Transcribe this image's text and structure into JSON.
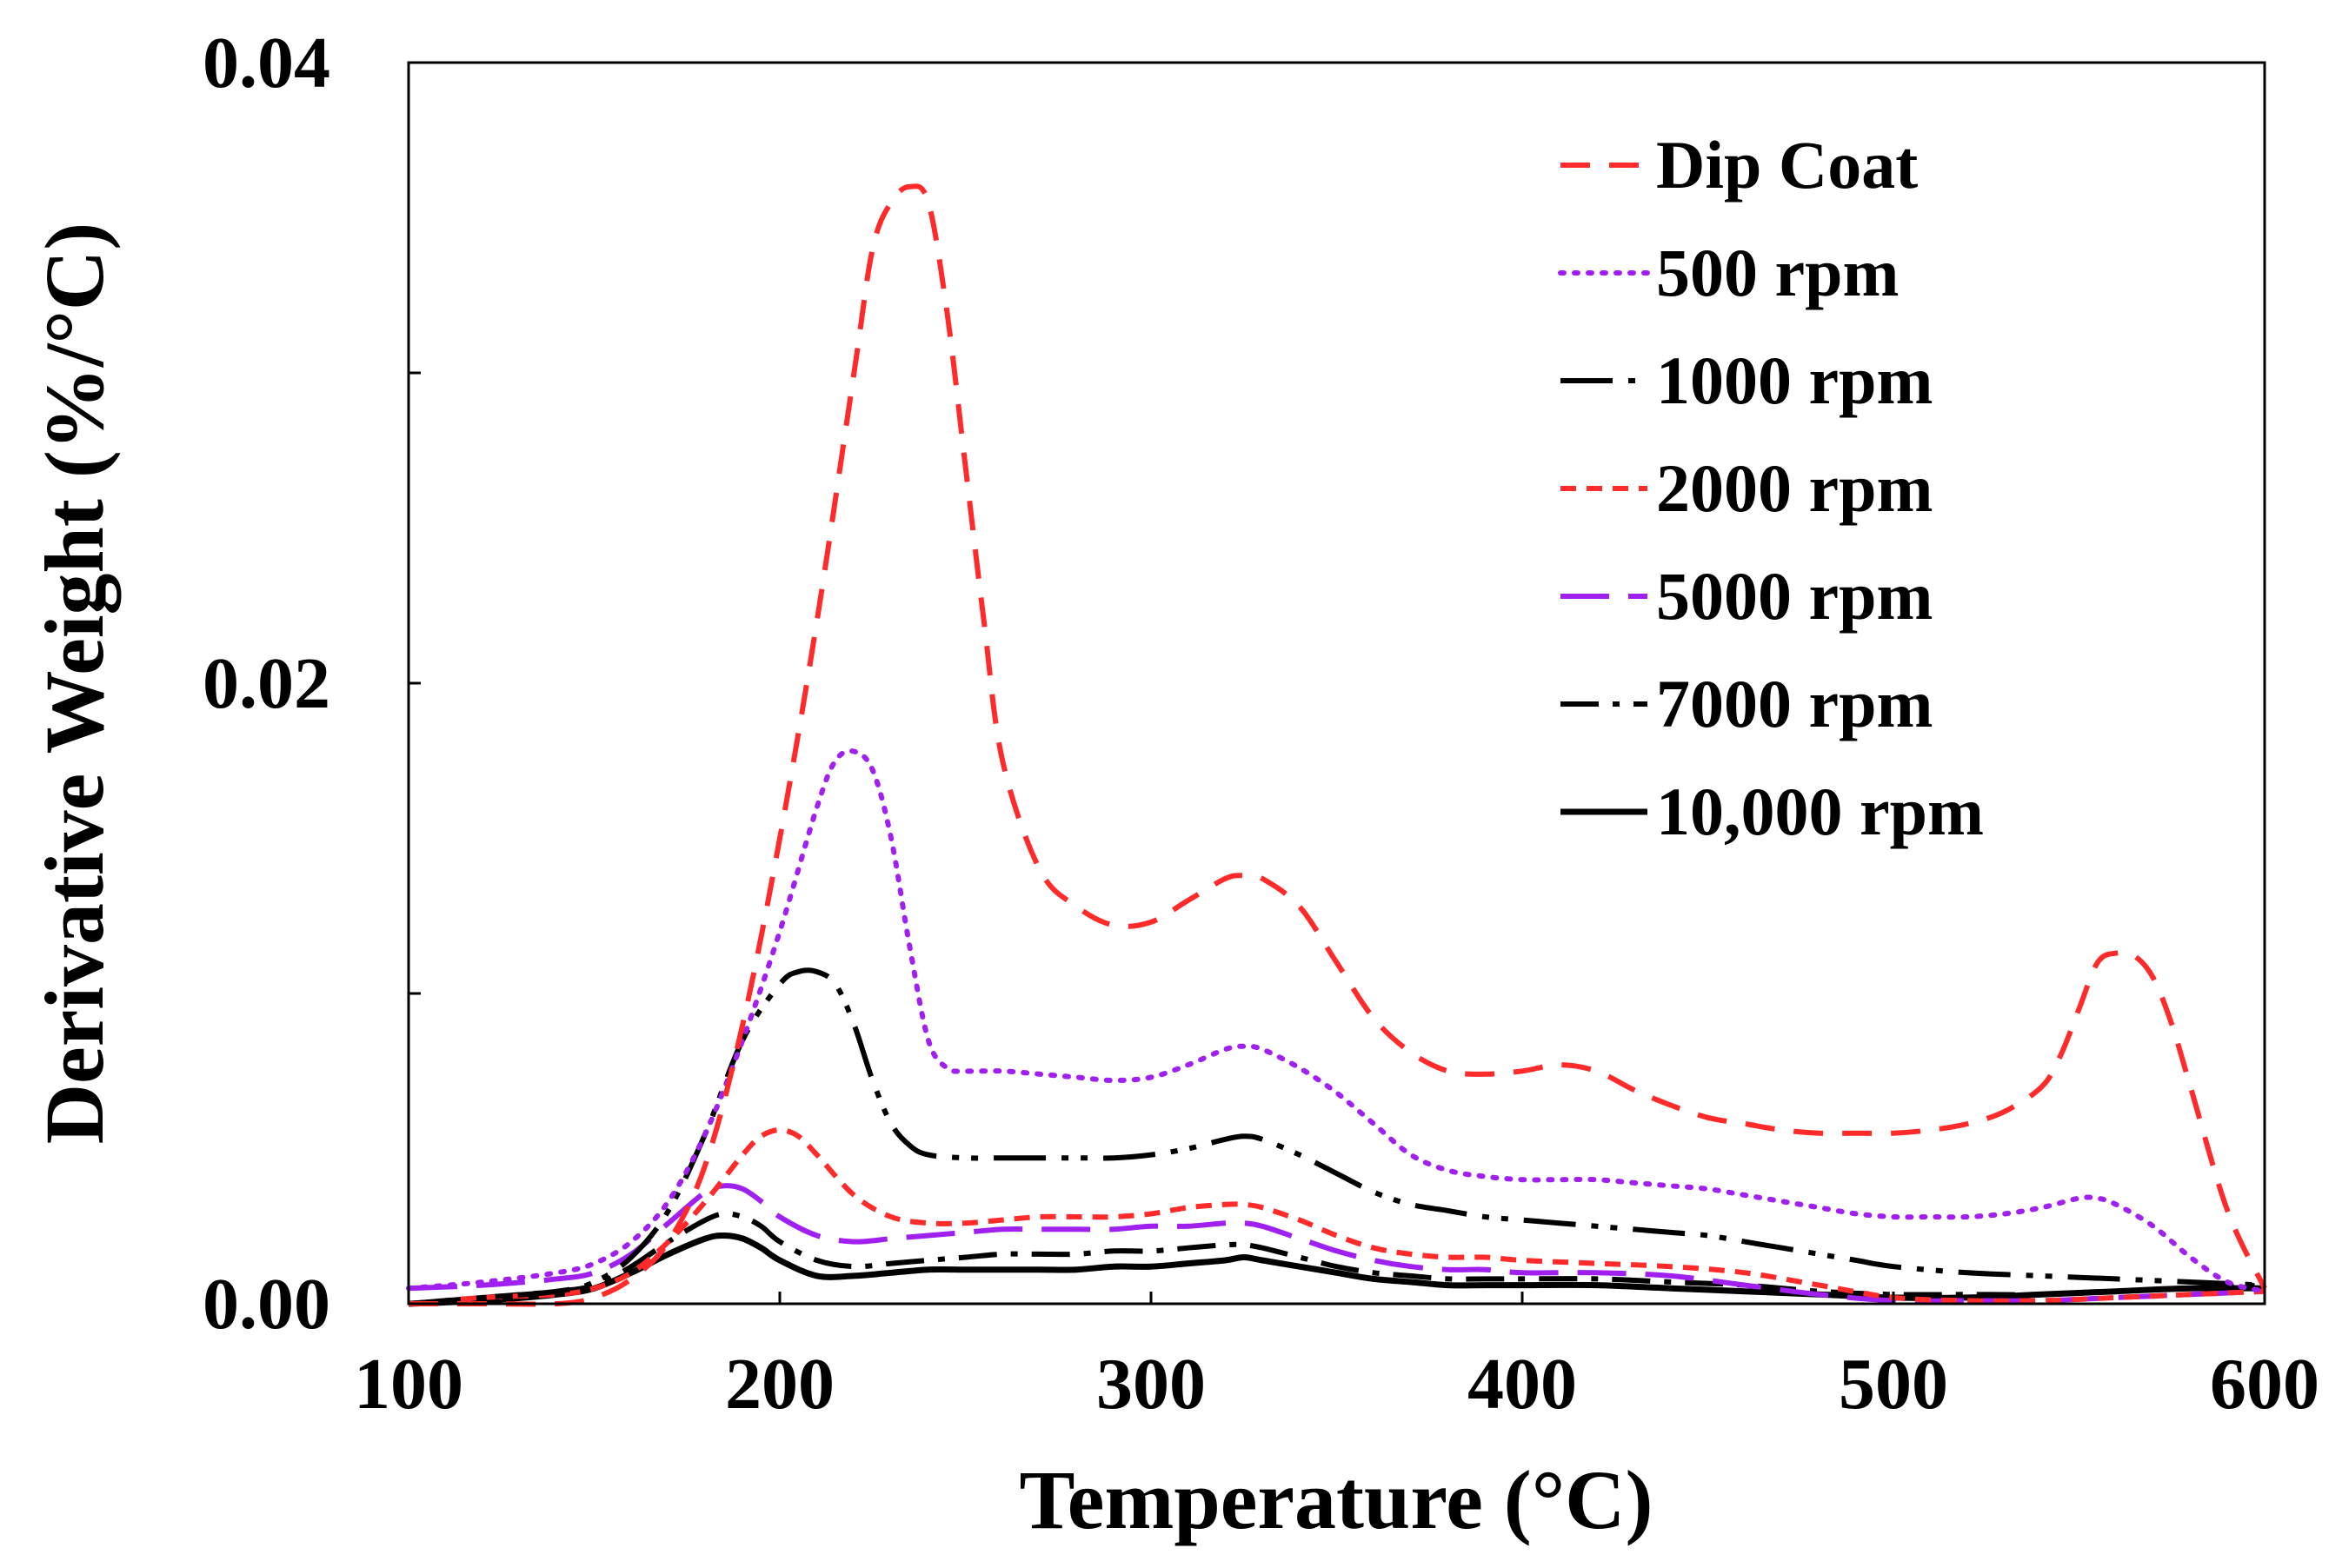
{
  "chart_data": {
    "type": "line",
    "title": "",
    "xlabel": "Temperature (°C)",
    "ylabel": "Derivative Weight (%/°C)",
    "xlim": [
      100,
      600
    ],
    "ylim": [
      0,
      0.04
    ],
    "x_ticks": [
      100,
      200,
      300,
      400,
      500,
      600
    ],
    "x_tick_labels": [
      "100",
      "200",
      "300",
      "400",
      "500",
      "600"
    ],
    "y_ticks": [
      0,
      0.01,
      0.02,
      0.03,
      0.04
    ],
    "y_tick_labels": [
      "0.00",
      "",
      "0.02",
      "",
      "0.04"
    ],
    "grid": false,
    "legend_position": "top-right",
    "series": [
      {
        "name": "Dip Coat",
        "color": "#ff2a2a",
        "style": "dashed",
        "x": [
          100,
          120,
          140,
          150,
          160,
          170,
          180,
          190,
          200,
          210,
          220,
          225,
          230,
          235,
          240,
          245,
          250,
          255,
          260,
          270,
          280,
          290,
          300,
          310,
          320,
          325,
          330,
          340,
          350,
          360,
          370,
          380,
          390,
          400,
          410,
          420,
          430,
          440,
          450,
          460,
          470,
          480,
          490,
          500,
          510,
          520,
          530,
          540,
          545,
          550,
          555,
          560,
          565,
          570,
          575,
          580,
          590,
          600
        ],
        "values": [
          0,
          0,
          0,
          0.0002,
          0.0008,
          0.002,
          0.0045,
          0.009,
          0.015,
          0.022,
          0.03,
          0.034,
          0.0355,
          0.036,
          0.0355,
          0.032,
          0.027,
          0.022,
          0.0175,
          0.014,
          0.0128,
          0.0122,
          0.0123,
          0.013,
          0.0137,
          0.0138,
          0.0137,
          0.0128,
          0.011,
          0.0092,
          0.0081,
          0.0075,
          0.0074,
          0.0075,
          0.0077,
          0.0075,
          0.0069,
          0.0064,
          0.006,
          0.0058,
          0.0056,
          0.0055,
          0.0055,
          0.0055,
          0.0056,
          0.0058,
          0.0062,
          0.007,
          0.008,
          0.0095,
          0.011,
          0.0113,
          0.0112,
          0.0105,
          0.009,
          0.007,
          0.003,
          0.0005
        ]
      },
      {
        "name": "500 rpm",
        "color": "#a020f0",
        "style": "dotted",
        "x": [
          100,
          120,
          140,
          150,
          160,
          170,
          180,
          190,
          200,
          210,
          215,
          220,
          225,
          230,
          235,
          240,
          245,
          250,
          260,
          270,
          280,
          290,
          300,
          310,
          320,
          325,
          330,
          340,
          350,
          360,
          370,
          380,
          390,
          400,
          410,
          420,
          430,
          440,
          450,
          460,
          470,
          480,
          490,
          500,
          510,
          520,
          530,
          540,
          550,
          555,
          560,
          570,
          580,
          590,
          600
        ],
        "values": [
          0.0005,
          0.0007,
          0.001,
          0.0013,
          0.002,
          0.0033,
          0.0055,
          0.0085,
          0.012,
          0.016,
          0.0175,
          0.0178,
          0.0172,
          0.015,
          0.0115,
          0.0085,
          0.0076,
          0.0075,
          0.0075,
          0.0074,
          0.0073,
          0.0072,
          0.0073,
          0.0077,
          0.0082,
          0.0083,
          0.0082,
          0.0076,
          0.0068,
          0.0058,
          0.0048,
          0.0043,
          0.0041,
          0.004,
          0.004,
          0.004,
          0.0039,
          0.0038,
          0.0037,
          0.0035,
          0.0033,
          0.0031,
          0.0029,
          0.0028,
          0.0028,
          0.0028,
          0.0029,
          0.0031,
          0.0034,
          0.0034,
          0.0032,
          0.0025,
          0.0015,
          0.0007,
          0.0004
        ]
      },
      {
        "name": "1000 rpm",
        "color": "#000000",
        "style": "dash-dot-dot",
        "x": [
          100,
          120,
          140,
          150,
          160,
          170,
          180,
          190,
          200,
          205,
          210,
          215,
          220,
          225,
          230,
          235,
          240,
          250,
          260,
          270,
          280,
          290,
          300,
          310,
          320,
          325,
          330,
          340,
          350,
          360,
          370,
          380,
          390,
          400,
          410,
          420,
          430,
          440,
          450,
          460,
          470,
          480,
          490,
          500,
          520,
          540,
          560,
          580,
          600
        ],
        "values": [
          0,
          0.0002,
          0.0004,
          0.0007,
          0.0015,
          0.003,
          0.0055,
          0.0085,
          0.0103,
          0.0107,
          0.0107,
          0.0103,
          0.009,
          0.0072,
          0.0058,
          0.0051,
          0.0048,
          0.0047,
          0.0047,
          0.0047,
          0.0047,
          0.0047,
          0.0048,
          0.005,
          0.0053,
          0.0054,
          0.0053,
          0.0048,
          0.0042,
          0.0036,
          0.0032,
          0.003,
          0.0028,
          0.0027,
          0.0026,
          0.0025,
          0.0024,
          0.0023,
          0.0022,
          0.002,
          0.0018,
          0.0016,
          0.0014,
          0.0012,
          0.001,
          0.0009,
          0.0008,
          0.0007,
          0.0006
        ]
      },
      {
        "name": "2000 rpm",
        "color": "#ff2a2a",
        "style": "short-dash",
        "x": [
          100,
          120,
          140,
          150,
          160,
          170,
          180,
          190,
          195,
          200,
          205,
          210,
          220,
          230,
          240,
          250,
          260,
          270,
          280,
          290,
          300,
          310,
          320,
          325,
          330,
          340,
          350,
          360,
          370,
          380,
          390,
          400,
          420,
          440,
          460,
          480,
          500,
          520,
          540,
          560,
          580,
          600
        ],
        "values": [
          0,
          0.0002,
          0.0003,
          0.0005,
          0.001,
          0.002,
          0.0033,
          0.0048,
          0.0054,
          0.0056,
          0.0054,
          0.0048,
          0.0035,
          0.0028,
          0.0026,
          0.0026,
          0.0027,
          0.0028,
          0.0028,
          0.0028,
          0.0029,
          0.0031,
          0.0032,
          0.0032,
          0.0031,
          0.0027,
          0.0022,
          0.0018,
          0.0016,
          0.0015,
          0.0015,
          0.0014,
          0.0013,
          0.0012,
          0.001,
          0.0006,
          0.0002,
          0.0001,
          0.0001,
          0.0002,
          0.0003,
          0.0004
        ]
      },
      {
        "name": "5000 rpm",
        "color": "#a020f0",
        "style": "long-dash",
        "x": [
          100,
          120,
          140,
          150,
          160,
          170,
          180,
          185,
          190,
          195,
          200,
          210,
          220,
          230,
          240,
          250,
          260,
          270,
          280,
          290,
          300,
          310,
          320,
          325,
          330,
          340,
          350,
          360,
          370,
          380,
          390,
          400,
          420,
          440,
          460,
          480,
          500,
          520,
          540,
          560,
          580,
          600
        ],
        "values": [
          0.0005,
          0.0006,
          0.0008,
          0.001,
          0.0016,
          0.0026,
          0.0036,
          0.0038,
          0.0037,
          0.0033,
          0.0028,
          0.0022,
          0.002,
          0.0021,
          0.0022,
          0.0023,
          0.0024,
          0.0024,
          0.0024,
          0.0024,
          0.0025,
          0.0025,
          0.0026,
          0.0026,
          0.0025,
          0.0021,
          0.0017,
          0.0014,
          0.0012,
          0.0011,
          0.0011,
          0.001,
          0.001,
          0.0009,
          0.0006,
          0.0003,
          0.0001,
          0.0001,
          0.0001,
          0.0002,
          0.0003,
          0.0004
        ]
      },
      {
        "name": "7000 rpm",
        "color": "#000000",
        "style": "dash-dot",
        "x": [
          100,
          120,
          140,
          150,
          160,
          170,
          180,
          185,
          190,
          195,
          200,
          210,
          220,
          230,
          240,
          250,
          260,
          270,
          280,
          290,
          300,
          310,
          320,
          325,
          330,
          340,
          350,
          360,
          370,
          380,
          390,
          400,
          420,
          440,
          460,
          480,
          500,
          520,
          540,
          560,
          580,
          600
        ],
        "values": [
          0,
          0.0002,
          0.0004,
          0.0006,
          0.0012,
          0.002,
          0.0027,
          0.0029,
          0.0028,
          0.0025,
          0.002,
          0.0014,
          0.0012,
          0.0013,
          0.0014,
          0.0015,
          0.0016,
          0.0016,
          0.0016,
          0.0017,
          0.0017,
          0.0018,
          0.0019,
          0.0019,
          0.0018,
          0.0015,
          0.0012,
          0.001,
          0.0009,
          0.0008,
          0.0008,
          0.0008,
          0.0008,
          0.0007,
          0.0006,
          0.0004,
          0.0003,
          0.0003,
          0.0003,
          0.0004,
          0.0005,
          0.0006
        ]
      },
      {
        "name": "10,000 rpm",
        "color": "#000000",
        "style": "solid",
        "x": [
          100,
          120,
          140,
          150,
          160,
          170,
          180,
          185,
          190,
          195,
          200,
          210,
          220,
          230,
          240,
          250,
          260,
          270,
          280,
          290,
          300,
          310,
          320,
          325,
          330,
          340,
          350,
          360,
          370,
          380,
          390,
          400,
          420,
          440,
          460,
          480,
          500,
          520,
          540,
          560,
          580,
          600
        ],
        "values": [
          0,
          0.0001,
          0.0003,
          0.0005,
          0.001,
          0.0016,
          0.0021,
          0.0022,
          0.0021,
          0.0018,
          0.0014,
          0.0009,
          0.0009,
          0.001,
          0.0011,
          0.0011,
          0.0011,
          0.0011,
          0.0011,
          0.0012,
          0.0012,
          0.0013,
          0.0014,
          0.0015,
          0.0014,
          0.0012,
          0.001,
          0.0008,
          0.0007,
          0.0006,
          0.0006,
          0.0006,
          0.0006,
          0.0005,
          0.0004,
          0.0003,
          0.0002,
          0.0002,
          0.0003,
          0.0004,
          0.0005,
          0.0005
        ]
      }
    ]
  }
}
